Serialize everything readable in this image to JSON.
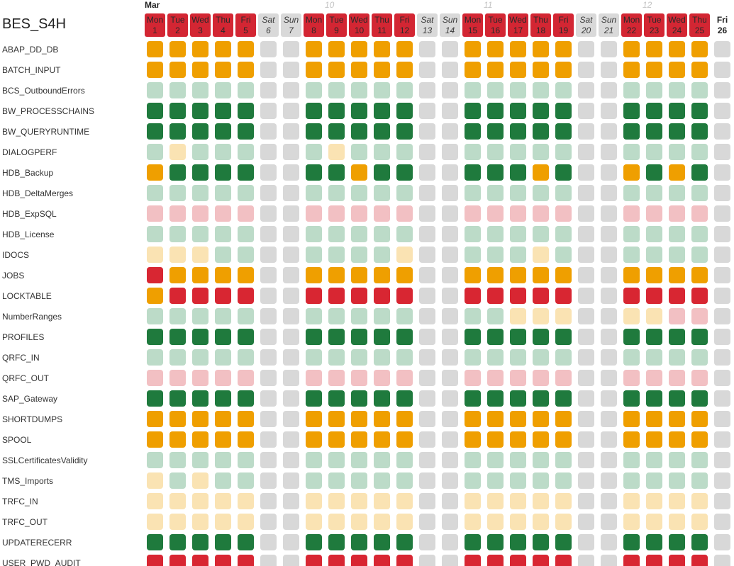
{
  "system_name": "BES_S4H",
  "month": "Mar",
  "week_numbers": [
    "10",
    "11",
    "12"
  ],
  "days": [
    {
      "dow": "Mon",
      "date": "1",
      "kind": "work"
    },
    {
      "dow": "Tue",
      "date": "2",
      "kind": "work"
    },
    {
      "dow": "Wed",
      "date": "3",
      "kind": "work"
    },
    {
      "dow": "Thu",
      "date": "4",
      "kind": "work"
    },
    {
      "dow": "Fri",
      "date": "5",
      "kind": "work"
    },
    {
      "dow": "Sat",
      "date": "6",
      "kind": "weekend"
    },
    {
      "dow": "Sun",
      "date": "7",
      "kind": "weekend"
    },
    {
      "dow": "Mon",
      "date": "8",
      "kind": "work"
    },
    {
      "dow": "Tue",
      "date": "9",
      "kind": "work"
    },
    {
      "dow": "Wed",
      "date": "10",
      "kind": "work"
    },
    {
      "dow": "Thu",
      "date": "11",
      "kind": "work"
    },
    {
      "dow": "Fri",
      "date": "12",
      "kind": "work"
    },
    {
      "dow": "Sat",
      "date": "13",
      "kind": "weekend"
    },
    {
      "dow": "Sun",
      "date": "14",
      "kind": "weekend"
    },
    {
      "dow": "Mon",
      "date": "15",
      "kind": "work"
    },
    {
      "dow": "Tue",
      "date": "16",
      "kind": "work"
    },
    {
      "dow": "Wed",
      "date": "17",
      "kind": "work"
    },
    {
      "dow": "Thu",
      "date": "18",
      "kind": "work"
    },
    {
      "dow": "Fri",
      "date": "19",
      "kind": "work"
    },
    {
      "dow": "Sat",
      "date": "20",
      "kind": "weekend"
    },
    {
      "dow": "Sun",
      "date": "21",
      "kind": "weekend"
    },
    {
      "dow": "Mon",
      "date": "22",
      "kind": "work"
    },
    {
      "dow": "Tue",
      "date": "23",
      "kind": "work"
    },
    {
      "dow": "Wed",
      "date": "24",
      "kind": "work"
    },
    {
      "dow": "Thu",
      "date": "25",
      "kind": "work"
    },
    {
      "dow": "Fri",
      "date": "26",
      "kind": "today"
    }
  ],
  "status_colors": {
    "warning": "#ef9f00",
    "ok": "#1f7a3d",
    "ok_light": "#bcdbc8",
    "warning_light": "#fae3b3",
    "error_light": "#f2c0c3",
    "error": "#d82632",
    "no_data": "#d8d8d8",
    "weekday_header": "#d32633",
    "weekend_header": "#d9d9d9"
  },
  "rows": [
    {
      "name": "ABAP_DD_DB",
      "statuses": [
        "y",
        "y",
        "y",
        "y",
        "y",
        "n",
        "n",
        "y",
        "y",
        "y",
        "y",
        "y",
        "n",
        "n",
        "y",
        "y",
        "y",
        "y",
        "y",
        "n",
        "n",
        "y",
        "y",
        "y",
        "y",
        "n"
      ]
    },
    {
      "name": "BATCH_INPUT",
      "statuses": [
        "y",
        "y",
        "y",
        "y",
        "y",
        "n",
        "n",
        "y",
        "y",
        "y",
        "y",
        "y",
        "n",
        "n",
        "y",
        "y",
        "y",
        "y",
        "y",
        "n",
        "n",
        "y",
        "y",
        "y",
        "y",
        "n"
      ]
    },
    {
      "name": "BCS_OutboundErrors",
      "statuses": [
        "lg",
        "lg",
        "lg",
        "lg",
        "lg",
        "n",
        "n",
        "lg",
        "lg",
        "lg",
        "lg",
        "lg",
        "n",
        "n",
        "lg",
        "lg",
        "lg",
        "lg",
        "lg",
        "n",
        "n",
        "lg",
        "lg",
        "lg",
        "lg",
        "n"
      ]
    },
    {
      "name": "BW_PROCESSCHAINS",
      "statuses": [
        "g",
        "g",
        "g",
        "g",
        "g",
        "n",
        "n",
        "g",
        "g",
        "g",
        "g",
        "g",
        "n",
        "n",
        "g",
        "g",
        "g",
        "g",
        "g",
        "n",
        "n",
        "g",
        "g",
        "g",
        "g",
        "n"
      ]
    },
    {
      "name": "BW_QUERYRUNTIME",
      "statuses": [
        "g",
        "g",
        "g",
        "g",
        "g",
        "n",
        "n",
        "g",
        "g",
        "g",
        "g",
        "g",
        "n",
        "n",
        "g",
        "g",
        "g",
        "g",
        "g",
        "n",
        "n",
        "g",
        "g",
        "g",
        "g",
        "n"
      ]
    },
    {
      "name": "DIALOGPERF",
      "statuses": [
        "lg",
        "ly",
        "lg",
        "lg",
        "lg",
        "n",
        "n",
        "lg",
        "ly",
        "lg",
        "lg",
        "lg",
        "n",
        "n",
        "lg",
        "lg",
        "lg",
        "lg",
        "lg",
        "n",
        "n",
        "lg",
        "lg",
        "lg",
        "lg",
        "n"
      ]
    },
    {
      "name": "HDB_Backup",
      "statuses": [
        "y",
        "g",
        "g",
        "g",
        "g",
        "n",
        "n",
        "g",
        "g",
        "y",
        "g",
        "g",
        "n",
        "n",
        "g",
        "g",
        "g",
        "y",
        "g",
        "n",
        "n",
        "y",
        "g",
        "y",
        "g",
        "n"
      ]
    },
    {
      "name": "HDB_DeltaMerges",
      "statuses": [
        "lg",
        "lg",
        "lg",
        "lg",
        "lg",
        "n",
        "n",
        "lg",
        "lg",
        "lg",
        "lg",
        "lg",
        "n",
        "n",
        "lg",
        "lg",
        "lg",
        "lg",
        "lg",
        "n",
        "n",
        "lg",
        "lg",
        "lg",
        "lg",
        "n"
      ]
    },
    {
      "name": "HDB_ExpSQL",
      "statuses": [
        "p",
        "p",
        "p",
        "p",
        "p",
        "n",
        "n",
        "p",
        "p",
        "p",
        "p",
        "p",
        "n",
        "n",
        "p",
        "p",
        "p",
        "p",
        "p",
        "n",
        "n",
        "p",
        "p",
        "p",
        "p",
        "n"
      ]
    },
    {
      "name": "HDB_License",
      "statuses": [
        "lg",
        "lg",
        "lg",
        "lg",
        "lg",
        "n",
        "n",
        "lg",
        "lg",
        "lg",
        "lg",
        "lg",
        "n",
        "n",
        "lg",
        "lg",
        "lg",
        "lg",
        "lg",
        "n",
        "n",
        "lg",
        "lg",
        "lg",
        "lg",
        "n"
      ]
    },
    {
      "name": "IDOCS",
      "statuses": [
        "ly",
        "ly",
        "ly",
        "lg",
        "lg",
        "n",
        "n",
        "lg",
        "lg",
        "lg",
        "lg",
        "ly",
        "n",
        "n",
        "lg",
        "lg",
        "lg",
        "ly",
        "lg",
        "n",
        "n",
        "lg",
        "lg",
        "lg",
        "lg",
        "n"
      ]
    },
    {
      "name": "JOBS",
      "statuses": [
        "r",
        "y",
        "y",
        "y",
        "y",
        "n",
        "n",
        "y",
        "y",
        "y",
        "y",
        "y",
        "n",
        "n",
        "y",
        "y",
        "y",
        "y",
        "y",
        "n",
        "n",
        "y",
        "y",
        "y",
        "y",
        "n"
      ]
    },
    {
      "name": "LOCKTABLE",
      "statuses": [
        "y",
        "r",
        "r",
        "r",
        "r",
        "n",
        "n",
        "r",
        "r",
        "r",
        "r",
        "r",
        "n",
        "n",
        "r",
        "r",
        "r",
        "r",
        "r",
        "n",
        "n",
        "r",
        "r",
        "r",
        "r",
        "n"
      ]
    },
    {
      "name": "NumberRanges",
      "statuses": [
        "lg",
        "lg",
        "lg",
        "lg",
        "lg",
        "n",
        "n",
        "lg",
        "lg",
        "lg",
        "lg",
        "lg",
        "n",
        "n",
        "lg",
        "lg",
        "ly",
        "ly",
        "ly",
        "n",
        "n",
        "ly",
        "ly",
        "p",
        "p",
        "n"
      ]
    },
    {
      "name": "PROFILES",
      "statuses": [
        "g",
        "g",
        "g",
        "g",
        "g",
        "n",
        "n",
        "g",
        "g",
        "g",
        "g",
        "g",
        "n",
        "n",
        "g",
        "g",
        "g",
        "g",
        "g",
        "n",
        "n",
        "g",
        "g",
        "g",
        "g",
        "n"
      ]
    },
    {
      "name": "QRFC_IN",
      "statuses": [
        "lg",
        "lg",
        "lg",
        "lg",
        "lg",
        "n",
        "n",
        "lg",
        "lg",
        "lg",
        "lg",
        "lg",
        "n",
        "n",
        "lg",
        "lg",
        "lg",
        "lg",
        "lg",
        "n",
        "n",
        "lg",
        "lg",
        "lg",
        "lg",
        "n"
      ]
    },
    {
      "name": "QRFC_OUT",
      "statuses": [
        "p",
        "p",
        "p",
        "p",
        "p",
        "n",
        "n",
        "p",
        "p",
        "p",
        "p",
        "p",
        "n",
        "n",
        "p",
        "p",
        "p",
        "p",
        "p",
        "n",
        "n",
        "p",
        "p",
        "p",
        "p",
        "n"
      ]
    },
    {
      "name": "SAP_Gateway",
      "statuses": [
        "g",
        "g",
        "g",
        "g",
        "g",
        "n",
        "n",
        "g",
        "g",
        "g",
        "g",
        "g",
        "n",
        "n",
        "g",
        "g",
        "g",
        "g",
        "g",
        "n",
        "n",
        "g",
        "g",
        "g",
        "g",
        "n"
      ]
    },
    {
      "name": "SHORTDUMPS",
      "statuses": [
        "y",
        "y",
        "y",
        "y",
        "y",
        "n",
        "n",
        "y",
        "y",
        "y",
        "y",
        "y",
        "n",
        "n",
        "y",
        "y",
        "y",
        "y",
        "y",
        "n",
        "n",
        "y",
        "y",
        "y",
        "y",
        "n"
      ]
    },
    {
      "name": "SPOOL",
      "statuses": [
        "y",
        "y",
        "y",
        "y",
        "y",
        "n",
        "n",
        "y",
        "y",
        "y",
        "y",
        "y",
        "n",
        "n",
        "y",
        "y",
        "y",
        "y",
        "y",
        "n",
        "n",
        "y",
        "y",
        "y",
        "y",
        "n"
      ]
    },
    {
      "name": "SSLCertificatesValidity",
      "statuses": [
        "lg",
        "lg",
        "lg",
        "lg",
        "lg",
        "n",
        "n",
        "lg",
        "lg",
        "lg",
        "lg",
        "lg",
        "n",
        "n",
        "lg",
        "lg",
        "lg",
        "lg",
        "lg",
        "n",
        "n",
        "lg",
        "lg",
        "lg",
        "lg",
        "n"
      ]
    },
    {
      "name": "TMS_Imports",
      "statuses": [
        "ly",
        "lg",
        "ly",
        "lg",
        "lg",
        "n",
        "n",
        "lg",
        "lg",
        "lg",
        "lg",
        "lg",
        "n",
        "n",
        "lg",
        "lg",
        "lg",
        "lg",
        "lg",
        "n",
        "n",
        "lg",
        "lg",
        "lg",
        "lg",
        "n"
      ]
    },
    {
      "name": "TRFC_IN",
      "statuses": [
        "ly",
        "ly",
        "ly",
        "ly",
        "ly",
        "n",
        "n",
        "ly",
        "ly",
        "ly",
        "ly",
        "ly",
        "n",
        "n",
        "ly",
        "ly",
        "ly",
        "ly",
        "ly",
        "n",
        "n",
        "ly",
        "ly",
        "ly",
        "ly",
        "n"
      ]
    },
    {
      "name": "TRFC_OUT",
      "statuses": [
        "ly",
        "ly",
        "ly",
        "ly",
        "ly",
        "n",
        "n",
        "ly",
        "ly",
        "ly",
        "ly",
        "ly",
        "n",
        "n",
        "ly",
        "ly",
        "ly",
        "ly",
        "ly",
        "n",
        "n",
        "ly",
        "ly",
        "ly",
        "ly",
        "n"
      ]
    },
    {
      "name": "UPDATERECERR",
      "statuses": [
        "g",
        "g",
        "g",
        "g",
        "g",
        "n",
        "n",
        "g",
        "g",
        "g",
        "g",
        "g",
        "n",
        "n",
        "g",
        "g",
        "g",
        "g",
        "g",
        "n",
        "n",
        "g",
        "g",
        "g",
        "g",
        "n"
      ]
    },
    {
      "name": "USER_PWD_AUDIT",
      "statuses": [
        "r",
        "r",
        "r",
        "r",
        "r",
        "n",
        "n",
        "r",
        "r",
        "r",
        "r",
        "r",
        "n",
        "n",
        "r",
        "r",
        "r",
        "r",
        "r",
        "n",
        "n",
        "r",
        "r",
        "r",
        "r",
        "n"
      ]
    }
  ]
}
